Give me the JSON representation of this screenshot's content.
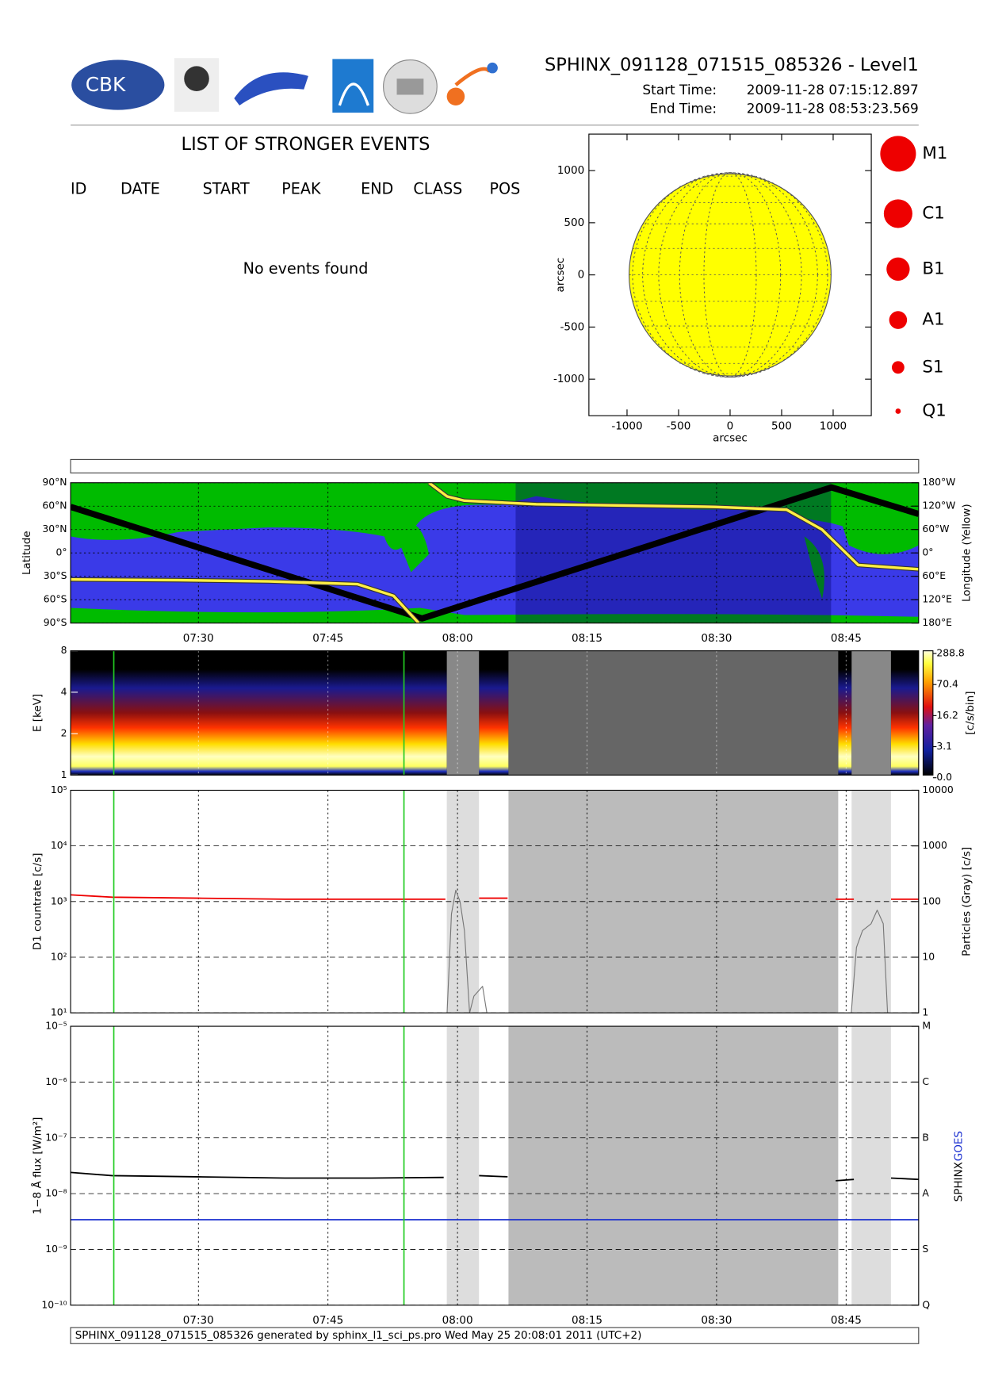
{
  "header": {
    "title": "SPHINX_091128_071515_085326 - Level1",
    "start_label": "Start Time:",
    "start_value": "2009-11-28   07:15:12.897",
    "end_label": "End Time:",
    "end_value": "2009-11-28   08:53:23.569",
    "logo_text": "CBK"
  },
  "events": {
    "title": "LIST OF STRONGER EVENTS",
    "columns": [
      "ID",
      "DATE",
      "START",
      "PEAK",
      "END",
      "CLASS",
      "POS"
    ],
    "message": "No events found"
  },
  "flare_classes": [
    "M1",
    "C1",
    "B1",
    "A1",
    "S1",
    "Q1"
  ],
  "footer": "SPHINX_091128_071515_085326 generated by sphinx_l1_sci_ps.pro Wed May 25 20:08:01 2011 (UTC+2)",
  "chart_data": [
    {
      "type": "disk",
      "xlabel": "arcsec",
      "ylabel": "arcsec",
      "xlim": [
        -1370,
        1370
      ],
      "ylim": [
        -1350,
        1350
      ],
      "xticks": [
        -1000,
        -500,
        0,
        500,
        1000
      ],
      "yticks": [
        -1000,
        -500,
        0,
        500,
        1000
      ],
      "radius": 980,
      "color": "#ffff00"
    },
    {
      "type": "line",
      "ylabel": "Latitude",
      "y2label": "Longitude (Yellow)",
      "xlim": [
        435.2,
        533.4
      ],
      "xticks": [
        {
          "value": 450,
          "label": "07:30"
        },
        {
          "value": 465,
          "label": "07:45"
        },
        {
          "value": 480,
          "label": "08:00"
        },
        {
          "value": 495,
          "label": "08:15"
        },
        {
          "value": 510,
          "label": "08:30"
        },
        {
          "value": 525,
          "label": "08:45"
        }
      ],
      "xtick_labels": true,
      "ylim": [
        -90,
        90
      ],
      "yticks": [
        {
          "value": 90,
          "label": "90°N"
        },
        {
          "value": 60,
          "label": "60°N"
        },
        {
          "value": 30,
          "label": "30°N"
        },
        {
          "value": 0,
          "label": "0°"
        },
        {
          "value": -30,
          "label": "30°S"
        },
        {
          "value": -60,
          "label": "60°S"
        },
        {
          "value": -90,
          "label": "90°S"
        }
      ],
      "y2lim": [
        -180,
        180
      ],
      "y2ticks": [
        {
          "value": 180,
          "label": "180°W"
        },
        {
          "value": 120,
          "label": "120°W"
        },
        {
          "value": 60,
          "label": "60°W"
        },
        {
          "value": 0,
          "label": "0°"
        },
        {
          "value": -60,
          "label": "60°E"
        },
        {
          "value": -120,
          "label": "120°E"
        },
        {
          "value": -180,
          "label": "180°E"
        }
      ],
      "grid": true,
      "series": [
        {
          "color": "#000000",
          "x": [
            435.2,
            475.9,
            523.3,
            533.4
          ],
          "values": [
            59,
            -84,
            84,
            50
          ]
        },
        {
          "color": "#ffee44",
          "axis": "y2",
          "x": [
            435.2,
            447.7,
            458.1,
            468.4,
            472.6,
            475.5,
            476.0,
            476.7,
            478.8,
            480.8,
            489.1,
            509.8,
            518.1,
            522.2,
            526.4,
            533.4
          ],
          "values": [
            -68,
            -70,
            -73,
            -80,
            -110,
            -180,
            null,
            180,
            145,
            134,
            125,
            118,
            111,
            60,
            -31,
            -42
          ]
        }
      ]
    },
    {
      "type": "spectrogram",
      "ylabel": "E [keV]",
      "y2label": "[c/s/bin]",
      "xlim": [
        435.2,
        533.4
      ],
      "xticks": [
        {
          "value": 450,
          "label": "07:30"
        },
        {
          "value": 465,
          "label": "07:45"
        },
        {
          "value": 480,
          "label": "08:00"
        },
        {
          "value": 495,
          "label": "08:15"
        },
        {
          "value": 510,
          "label": "08:30"
        },
        {
          "value": 525,
          "label": "08:45"
        }
      ],
      "xtick_labels": false,
      "ylim": [
        1,
        8
      ],
      "log": true,
      "yticks": [
        1,
        2,
        4,
        8
      ],
      "colorbar_ticks": [
        288.8,
        70.4,
        16.2,
        3.1,
        {
          "value": 0,
          "label": "0.0"
        }
      ],
      "markers_x": [
        440.2,
        473.8
      ],
      "marker_color": "#22cc22"
    },
    {
      "type": "line",
      "ylabel": "D1 countrate [c/s]",
      "y2label": "Particles (Gray) [c/s]",
      "xlim": [
        435.2,
        533.4
      ],
      "xticks": [
        {
          "value": 450,
          "label": "07:30"
        },
        {
          "value": 465,
          "label": "07:45"
        },
        {
          "value": 480,
          "label": "08:00"
        },
        {
          "value": 495,
          "label": "08:15"
        },
        {
          "value": 510,
          "label": "08:30"
        },
        {
          "value": 525,
          "label": "08:45"
        }
      ],
      "xtick_labels": false,
      "ylim": [
        10,
        100000
      ],
      "log": true,
      "yticks": [
        {
          "value": 10,
          "label": "10¹"
        },
        {
          "value": 100,
          "label": "10²"
        },
        {
          "value": 1000,
          "label": "10³"
        },
        {
          "value": 10000,
          "label": "10⁴"
        },
        {
          "value": 100000,
          "label": "10⁵"
        }
      ],
      "y2lim": [
        1,
        10000
      ],
      "y2ticks": [
        1,
        10,
        100,
        1000,
        10000
      ],
      "grid": true,
      "markers_x": [
        440.2,
        473.8
      ],
      "marker_color": "#22cc22",
      "series": [
        {
          "color": "#ee0000",
          "x": [
            435.2,
            440,
            450,
            460,
            470,
            478.6,
            480,
            482.5,
            485.8,
            500,
            523.8,
            525.9,
            528,
            530.2,
            533.4
          ],
          "values": [
            1320,
            1200,
            1150,
            1100,
            1100,
            1100,
            null,
            1150,
            1150,
            null,
            1100,
            1100,
            null,
            1100,
            1100
          ]
        },
        {
          "color": "#777777",
          "axis": "y2",
          "x": [
            478.8,
            479.3,
            479.8,
            480.3,
            480.8,
            481.4,
            481.9,
            482.9,
            483.4,
            500,
            525.6,
            526.2,
            526.9,
            527.9,
            528.6,
            529.3,
            529.8
          ],
          "values": [
            1,
            60,
            160,
            100,
            30,
            1,
            2,
            3,
            1,
            null,
            1,
            15,
            30,
            40,
            70,
            40,
            1
          ]
        }
      ]
    },
    {
      "type": "line",
      "ylabel": "1−8 Å flux [W/m²]",
      "xlim": [
        435.2,
        533.4
      ],
      "xticks": [
        {
          "value": 450,
          "label": "07:30"
        },
        {
          "value": 465,
          "label": "07:45"
        },
        {
          "value": 480,
          "label": "08:00"
        },
        {
          "value": 495,
          "label": "08:15"
        },
        {
          "value": 510,
          "label": "08:30"
        },
        {
          "value": 525,
          "label": "08:45"
        }
      ],
      "xtick_labels": true,
      "ylim": [
        1e-10,
        1e-05
      ],
      "log": true,
      "yticks": [
        {
          "value": 1e-10,
          "label": "10⁻¹⁰"
        },
        {
          "value": 1e-09,
          "label": "10⁻⁹"
        },
        {
          "value": 1e-08,
          "label": "10⁻⁸"
        },
        {
          "value": 1e-07,
          "label": "10⁻⁷"
        },
        {
          "value": 1e-06,
          "label": "10⁻⁶"
        },
        {
          "value": 1e-05,
          "label": "10⁻⁵"
        }
      ],
      "y2lim": [
        1e-10,
        1e-05
      ],
      "y2ticks": [
        {
          "value": 1e-05,
          "label": "M"
        },
        {
          "value": 1e-06,
          "label": "C"
        },
        {
          "value": 1e-07,
          "label": "B"
        },
        {
          "value": 1e-08,
          "label": "A"
        },
        {
          "value": 1e-09,
          "label": "S"
        },
        {
          "value": 1e-10,
          "label": "Q"
        }
      ],
      "grid": true,
      "markers_x": [
        440.2,
        473.8
      ],
      "marker_color": "#22cc22",
      "legend": [
        "SPHINX",
        "GOES"
      ],
      "series": [
        {
          "color": "#000000",
          "x": [
            435.2,
            440,
            450,
            460,
            470,
            478.4,
            480,
            482.5,
            485.8,
            500,
            523.8,
            525.9,
            528,
            530.2,
            533.4
          ],
          "values": [
            2.4e-08,
            2.1e-08,
            2e-08,
            1.9e-08,
            1.9e-08,
            1.95e-08,
            null,
            2.1e-08,
            2e-08,
            null,
            1.7e-08,
            1.8e-08,
            null,
            1.9e-08,
            1.8e-08
          ]
        },
        {
          "color": "#1a2fd0",
          "x": [
            435.2,
            533.4
          ],
          "values": [
            3.4e-09,
            3.4e-09
          ]
        }
      ]
    }
  ]
}
